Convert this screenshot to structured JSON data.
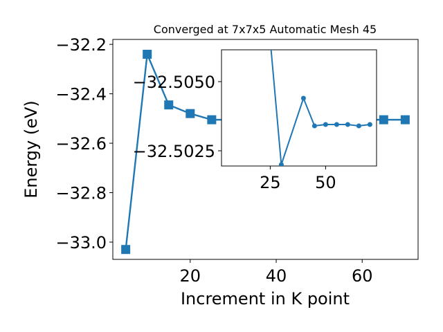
{
  "chart_data": [
    {
      "type": "line",
      "title": "Converged at 7x7x5 Automatic Mesh 45",
      "xlabel": "Increment in K point",
      "ylabel": "Energy (eV)",
      "xlim": [
        2,
        73
      ],
      "ylim": [
        -33.07,
        -32.18
      ],
      "xticks": [
        20,
        40,
        60
      ],
      "xtick_labels": [
        "20",
        "40",
        "60"
      ],
      "yticks": [
        -32.2,
        -32.4,
        -32.6,
        -32.8,
        -33.0
      ],
      "ytick_labels": [
        "−32.2",
        "−32.4",
        "−32.6",
        "−32.8",
        "−33.0"
      ],
      "color": "#1f77b4",
      "marker": "square",
      "series": [
        {
          "x": [
            5,
            10,
            15,
            20,
            25,
            30,
            35,
            40,
            45,
            50,
            55,
            60,
            65,
            70
          ],
          "y": [
            -33.03,
            -32.24,
            -32.445,
            -32.48,
            -32.505,
            -32.505,
            -32.505,
            -32.505,
            -32.505,
            -32.505,
            -32.505,
            -32.505,
            -32.505,
            -32.505
          ]
        }
      ]
    },
    {
      "type": "line",
      "title": "",
      "xlabel": "",
      "ylabel": "",
      "xlim": [
        3,
        73
      ],
      "ylim": [
        -32.50195,
        -32.50615
      ],
      "xticks": [
        25,
        50
      ],
      "xtick_labels": [
        "25",
        "50"
      ],
      "yticks": [
        -32.505,
        -32.5025
      ],
      "ytick_labels": [
        "−32.5050",
        "−32.5025"
      ],
      "color": "#1f77b4",
      "marker": "circle",
      "series": [
        {
          "x": [
            25,
            30,
            40,
            45,
            50,
            55,
            60,
            65,
            70
          ],
          "y": [
            -32.5065,
            -32.502,
            -32.5044,
            -32.5034,
            -32.50345,
            -32.50345,
            -32.50345,
            -32.5034,
            -32.50345
          ]
        }
      ]
    }
  ]
}
